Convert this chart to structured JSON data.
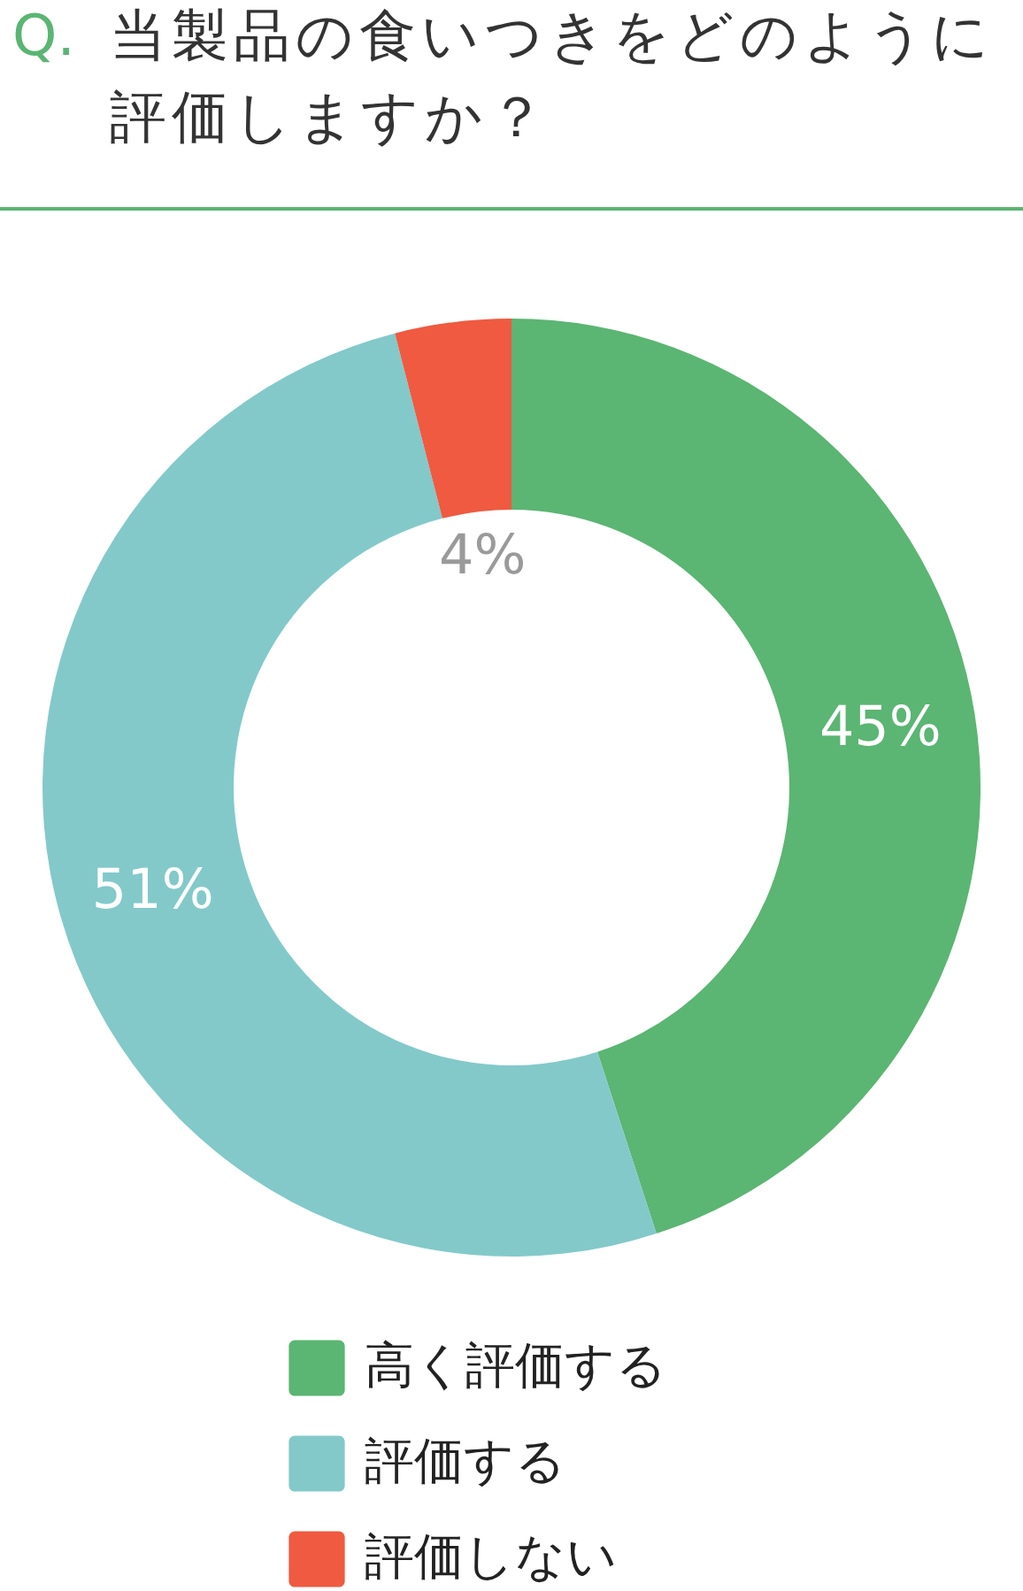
{
  "chart_data": {
    "type": "donut",
    "title": "Q. 当製品の食いつきをどのように評価しますか？",
    "categories": [
      "高く評価する",
      "評価する",
      "評価しない"
    ],
    "values": [
      45,
      51,
      4
    ],
    "colors": [
      "#5bb573",
      "#83c9ca",
      "#ef5a40"
    ],
    "value_labels": [
      "45%",
      "51%",
      "4%"
    ],
    "legend": "bottom"
  }
}
